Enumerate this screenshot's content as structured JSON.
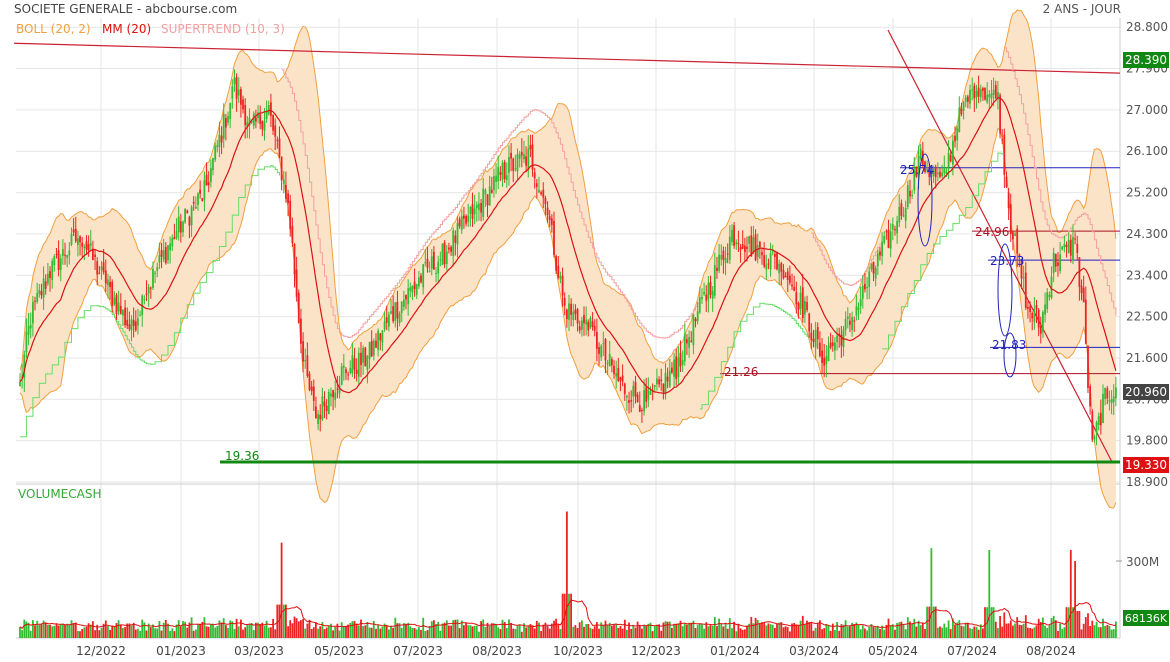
{
  "header": {
    "title": "SOCIETE GENERALE - abcbourse.com",
    "period": "2 ANS - JOUR"
  },
  "legend": {
    "boll": "BOLL (20, 2)",
    "mm": "MM (20)",
    "supertrend": "SUPERTREND (10, 3)",
    "volume": "VOLUMECASH"
  },
  "colors": {
    "up": "#33bb33",
    "down": "#ee2222",
    "boll_line": "#f0a040",
    "boll_fill": "#fbe3c8",
    "mm": "#dd1111",
    "supertrend_up": "#66dd66",
    "supertrend_down": "#f4a0a0",
    "trendline": "#cc2233",
    "support": "#118811",
    "annot_red": "#aa1122",
    "annot_blue": "#2222bb",
    "grid": "#e6e6e6"
  },
  "chart_data": {
    "type": "candlestick",
    "x_ticks": [
      "12/2022",
      "01/2023",
      "03/2023",
      "05/2023",
      "07/2023",
      "08/2023",
      "10/2023",
      "12/2023",
      "01/2024",
      "03/2024",
      "05/2024",
      "07/2024",
      "08/2024"
    ],
    "y_ticks": [
      "28.800",
      "27.900",
      "27.000",
      "26.100",
      "25.200",
      "24.300",
      "23.400",
      "22.500",
      "21.600",
      "20.700",
      "19.800",
      "18.900"
    ],
    "ylim": [
      18.9,
      29.0
    ],
    "last_price": "20.960",
    "high_label": "28.390",
    "support_label": "19.330",
    "volume_label": "68136K",
    "volume_tick": "300M",
    "anchors": [
      [
        0,
        21.0
      ],
      [
        5,
        22.5
      ],
      [
        14,
        23.5
      ],
      [
        28,
        24.3
      ],
      [
        40,
        23.2
      ],
      [
        52,
        22.2
      ],
      [
        58,
        23.0
      ],
      [
        72,
        24.3
      ],
      [
        86,
        25.2
      ],
      [
        100,
        27.5
      ],
      [
        108,
        26.6
      ],
      [
        116,
        27.0
      ],
      [
        125,
        25.0
      ],
      [
        132,
        21.5
      ],
      [
        138,
        20.3
      ],
      [
        150,
        21.3
      ],
      [
        162,
        21.6
      ],
      [
        174,
        22.6
      ],
      [
        186,
        23.3
      ],
      [
        198,
        23.9
      ],
      [
        212,
        24.8
      ],
      [
        226,
        25.7
      ],
      [
        238,
        26.0
      ],
      [
        246,
        24.8
      ],
      [
        254,
        22.7
      ],
      [
        266,
        22.2
      ],
      [
        280,
        21.0
      ],
      [
        292,
        20.6
      ],
      [
        306,
        21.4
      ],
      [
        320,
        23.0
      ],
      [
        332,
        24.3
      ],
      [
        342,
        24.0
      ],
      [
        356,
        23.6
      ],
      [
        366,
        22.6
      ],
      [
        374,
        21.6
      ],
      [
        386,
        22.3
      ],
      [
        398,
        23.5
      ],
      [
        410,
        24.7
      ],
      [
        420,
        25.9
      ],
      [
        430,
        25.4
      ],
      [
        438,
        26.8
      ],
      [
        446,
        27.6
      ],
      [
        456,
        27.2
      ],
      [
        462,
        24.5
      ],
      [
        470,
        22.7
      ],
      [
        476,
        22.3
      ],
      [
        482,
        23.7
      ],
      [
        492,
        24.1
      ],
      [
        496,
        22.6
      ],
      [
        500,
        19.6
      ],
      [
        506,
        20.8
      ],
      [
        511,
        20.96
      ]
    ],
    "volume_spikes": [
      [
        122,
        260
      ],
      [
        255,
        345
      ],
      [
        425,
        245
      ],
      [
        452,
        240
      ],
      [
        492,
        210
      ],
      [
        490,
        240
      ]
    ],
    "annotations": {
      "support": "19.36",
      "level_2126": "21.26",
      "level_2574": "25.74",
      "level_2496": "24.96",
      "level_2373": "23.73",
      "level_2183": "21.83"
    }
  }
}
